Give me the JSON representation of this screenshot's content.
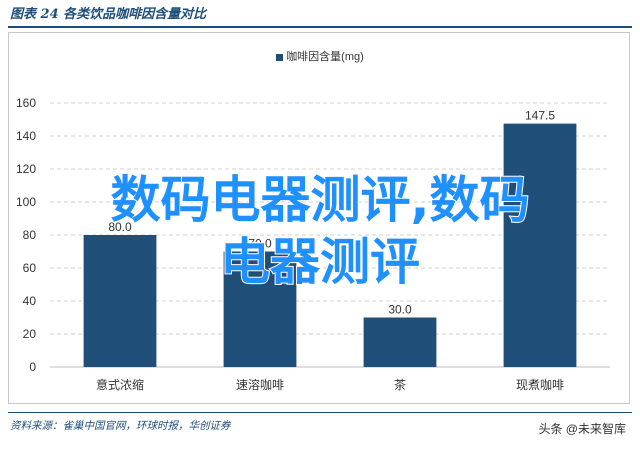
{
  "header": {
    "title": "图表 24  各类饮品咖啡因含量对比"
  },
  "footer": {
    "source": "资料来源：雀巢中国官网，环球时报，华创证券"
  },
  "brand": {
    "text": "头条 @未来智库"
  },
  "overlay": {
    "line1": "数码电器测评,数码",
    "line2": "电器测评"
  },
  "colors": {
    "bar": "#1f4e79",
    "grid": "#d0d0d0",
    "header": "#1f4e7a",
    "overlay": "#1e90ff"
  },
  "chart_data": {
    "type": "bar",
    "categories": [
      "意式浓缩",
      "速溶咖啡",
      "茶",
      "现煮咖啡"
    ],
    "series": [
      {
        "name": "咖啡因含量(mg)",
        "values": [
          80.0,
          70.0,
          30.0,
          147.5
        ]
      }
    ],
    "data_labels": [
      "80.0",
      "70.0",
      "30.0",
      "147.5"
    ],
    "yticks": [
      "0",
      "20",
      "40",
      "60",
      "80",
      "100",
      "120",
      "140",
      "160"
    ],
    "ylim": [
      0,
      160
    ],
    "grid": true,
    "legend": "top-center"
  }
}
